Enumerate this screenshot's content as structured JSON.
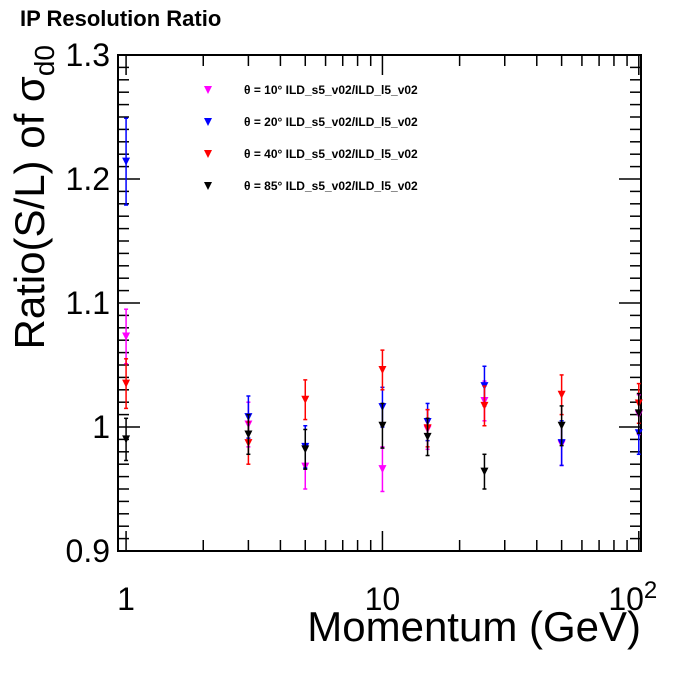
{
  "title": "IP Resolution Ratio",
  "chart_data": {
    "type": "scatter",
    "title": "IP Resolution Ratio",
    "xlabel": "Momentum (GeV)",
    "ylabel_main": "Ratio(S/L) of σ",
    "ylabel_sub": "d0",
    "x_scale": "log",
    "xlim": [
      0.93,
      102
    ],
    "ylim": [
      0.9,
      1.3
    ],
    "x_tick_labels": [
      {
        "value": 1,
        "base": "1",
        "sup": ""
      },
      {
        "value": 10,
        "base": "10",
        "sup": ""
      },
      {
        "value": 100,
        "base": "10",
        "sup": "2"
      }
    ],
    "y_tick_labels": [
      {
        "value": 0.9,
        "text": "0.9"
      },
      {
        "value": 1.0,
        "text": "1"
      },
      {
        "value": 1.1,
        "text": "1.1"
      },
      {
        "value": 1.2,
        "text": "1.2"
      },
      {
        "value": 1.3,
        "text": "1.3"
      }
    ],
    "legend_position": "top-left",
    "series": [
      {
        "name": "θ = 10° ILD_s5_v02/ILD_l5_v02",
        "theta": "10",
        "color": "#ff00ff",
        "points": [
          {
            "x": 1,
            "y": 1.073,
            "err": 0.022
          },
          {
            "x": 3,
            "y": 1.002,
            "err": 0.018
          },
          {
            "x": 5,
            "y": 0.968,
            "err": 0.018
          },
          {
            "x": 10,
            "y": 0.966,
            "err": 0.018
          },
          {
            "x": 15,
            "y": 0.998,
            "err": 0.016
          },
          {
            "x": 25,
            "y": 1.021,
            "err": 0.016
          },
          {
            "x": 50,
            "y": 0.986,
            "err": 0.017
          },
          {
            "x": 100,
            "y": 1.01,
            "err": 0.016
          }
        ]
      },
      {
        "name": "θ = 20° ILD_s5_v02/ILD_l5_v02",
        "theta": "20",
        "color": "#0000ff",
        "points": [
          {
            "x": 1,
            "y": 1.214,
            "err": 0.035
          },
          {
            "x": 3,
            "y": 1.008,
            "err": 0.017
          },
          {
            "x": 5,
            "y": 0.984,
            "err": 0.017
          },
          {
            "x": 10,
            "y": 1.016,
            "err": 0.016
          },
          {
            "x": 15,
            "y": 1.004,
            "err": 0.015
          },
          {
            "x": 25,
            "y": 1.033,
            "err": 0.016
          },
          {
            "x": 50,
            "y": 0.987,
            "err": 0.018
          },
          {
            "x": 100,
            "y": 0.995,
            "err": 0.017
          }
        ]
      },
      {
        "name": "θ = 40° ILD_s5_v02/ILD_l5_v02",
        "theta": "40",
        "color": "#ff0000",
        "points": [
          {
            "x": 1,
            "y": 1.035,
            "err": 0.02
          },
          {
            "x": 3,
            "y": 0.987,
            "err": 0.017
          },
          {
            "x": 5,
            "y": 1.022,
            "err": 0.016
          },
          {
            "x": 10,
            "y": 1.046,
            "err": 0.016
          },
          {
            "x": 15,
            "y": 0.999,
            "err": 0.015
          },
          {
            "x": 25,
            "y": 1.017,
            "err": 0.016
          },
          {
            "x": 50,
            "y": 1.026,
            "err": 0.016
          },
          {
            "x": 100,
            "y": 1.019,
            "err": 0.016
          }
        ]
      },
      {
        "name": "θ = 85° ILD_s5_v02/ILD_l5_v02",
        "theta": "85",
        "color": "#000000",
        "points": [
          {
            "x": 1,
            "y": 0.99,
            "err": 0.017
          },
          {
            "x": 3,
            "y": 0.994,
            "err": 0.016
          },
          {
            "x": 5,
            "y": 0.982,
            "err": 0.016
          },
          {
            "x": 10,
            "y": 1.001,
            "err": 0.018
          },
          {
            "x": 15,
            "y": 0.992,
            "err": 0.015
          },
          {
            "x": 25,
            "y": 0.964,
            "err": 0.014
          },
          {
            "x": 50,
            "y": 1.001,
            "err": 0.016
          },
          {
            "x": 100,
            "y": 1.011,
            "err": 0.016
          }
        ]
      }
    ]
  }
}
